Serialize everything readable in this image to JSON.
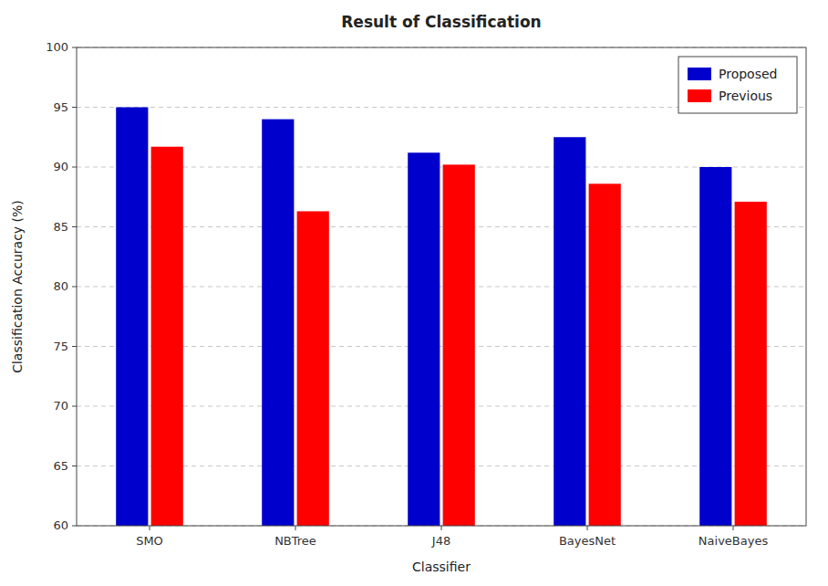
{
  "chart_data": {
    "type": "bar",
    "title": "Result of Classification",
    "xlabel": "Classifier",
    "ylabel": "Classification Accuracy (%)",
    "categories": [
      "SMO",
      "NBTree",
      "J48",
      "BayesNet",
      "NaiveBayes"
    ],
    "series": [
      {
        "name": "Proposed",
        "color": "#0000CD",
        "values": [
          95.0,
          94.0,
          91.2,
          92.5,
          90.0
        ]
      },
      {
        "name": "Previous",
        "color": "#FF0000",
        "values": [
          91.7,
          86.3,
          90.2,
          88.6,
          87.1
        ]
      }
    ],
    "ylim": [
      60,
      100
    ],
    "yticks": [
      60,
      65,
      70,
      75,
      80,
      85,
      90,
      95,
      100
    ],
    "grid": true,
    "legend": "upper right"
  }
}
